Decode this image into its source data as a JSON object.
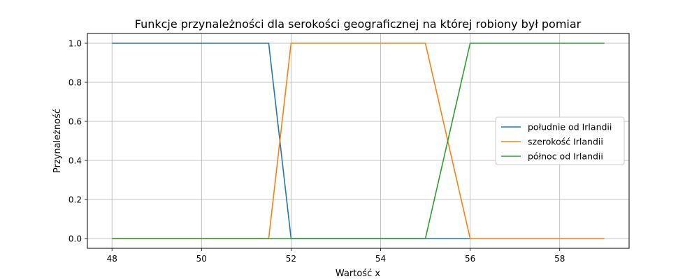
{
  "chart_data": {
    "type": "line",
    "title": "Funkcje przynależności dla serokości geograficznej na której robiony był pomiar",
    "xlabel": "Wartość x",
    "ylabel": "Przynależność",
    "xlim": [
      47.45,
      59.55
    ],
    "ylim": [
      -0.05,
      1.05
    ],
    "xticks": [
      48,
      50,
      52,
      54,
      56,
      58
    ],
    "yticks": [
      0.0,
      0.2,
      0.4,
      0.6,
      0.8,
      1.0
    ],
    "xtick_labels": [
      "48",
      "50",
      "52",
      "54",
      "56",
      "58"
    ],
    "ytick_labels": [
      "0.0",
      "0.2",
      "0.4",
      "0.6",
      "0.8",
      "1.0"
    ],
    "grid": true,
    "legend_position": "center-right",
    "series": [
      {
        "name": "południe od Irlandii",
        "color": "#1f77b4",
        "x": [
          48,
          51.5,
          52,
          56
        ],
        "y": [
          1,
          1,
          0,
          0
        ]
      },
      {
        "name": "szerokość Irlandii",
        "color": "#ff7f0e",
        "x": [
          48,
          51.5,
          52,
          55,
          56,
          59
        ],
        "y": [
          0,
          0,
          1,
          1,
          0,
          0
        ]
      },
      {
        "name": "północ od Irlandii",
        "color": "#2ca02c",
        "x": [
          48,
          55,
          56,
          59
        ],
        "y": [
          0,
          0,
          1,
          1
        ]
      }
    ]
  }
}
